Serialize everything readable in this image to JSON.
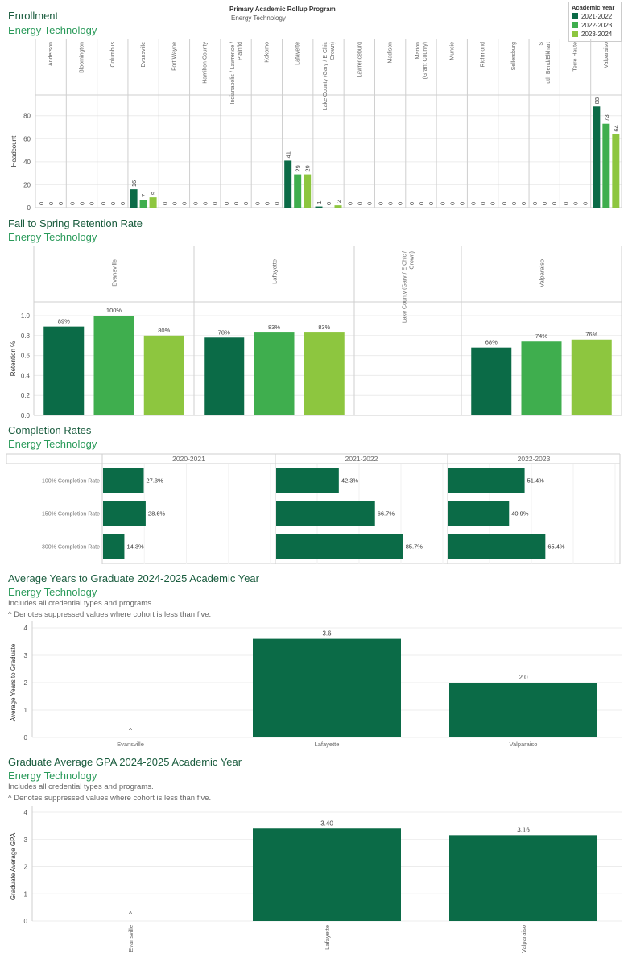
{
  "colors": {
    "y2122": "#0b6b47",
    "y2223": "#3fae4e",
    "y2324": "#8dc63f",
    "dark": "#0b6b47",
    "grid": "#ececec",
    "line": "#cfcfcf"
  },
  "enrollment": {
    "title": "Enrollment",
    "subtitle": "Energy Technology",
    "filter_title": "Primary Academic Rollup Program",
    "filter_value": "Energy Technology",
    "legend_title": "Academic Year",
    "legend": [
      "2021-2022",
      "2022-2023",
      "2023-2024"
    ],
    "chart_data": {
      "type": "bar",
      "ylabel": "Headcount",
      "ylim": [
        0,
        98
      ],
      "yticks": [
        0,
        20,
        40,
        60,
        80
      ],
      "categories": [
        "Anderson",
        "Bloomington",
        "Columbus",
        "Evansville",
        "Fort Wayne",
        "Hamilton County",
        "Indianapolis / Lawrence / Plainfld",
        "Kokomo",
        "Lafayette",
        "Lake County (Gary / E Chic / Crown)",
        "Lawrenceburg",
        "Madison",
        "Marion (Grant County)",
        "Muncie",
        "Richmond",
        "Sellersburg",
        "South Bend/Elkhart",
        "Terre Haute",
        "Valparaiso"
      ],
      "series": [
        {
          "name": "2021-2022",
          "values": [
            0,
            0,
            0,
            16,
            0,
            0,
            0,
            0,
            41,
            1,
            0,
            0,
            0,
            0,
            0,
            0,
            0,
            0,
            88
          ]
        },
        {
          "name": "2022-2023",
          "values": [
            0,
            0,
            0,
            7,
            0,
            0,
            0,
            0,
            29,
            0,
            0,
            0,
            0,
            0,
            0,
            0,
            0,
            0,
            73
          ]
        },
        {
          "name": "2023-2024",
          "values": [
            0,
            0,
            0,
            9,
            0,
            0,
            0,
            0,
            29,
            2,
            0,
            0,
            0,
            0,
            0,
            0,
            0,
            0,
            64
          ]
        }
      ]
    }
  },
  "retention": {
    "title": "Fall to Spring Retention Rate",
    "subtitle": "Energy Technology",
    "chart_data": {
      "type": "bar",
      "ylabel": "Retention %",
      "ylim": [
        0,
        1.0
      ],
      "yticks": [
        "0.0",
        "0.2",
        "0.4",
        "0.6",
        "0.8",
        "1.0"
      ],
      "categories": [
        "Evansville",
        "Lafayette",
        "Lake County (Gary / E Chic / Crown)",
        "Valparaiso"
      ],
      "series": [
        {
          "name": "2021-2022",
          "values": [
            0.89,
            0.78,
            null,
            0.68
          ],
          "labels": [
            "89%",
            "78%",
            "",
            "68%"
          ]
        },
        {
          "name": "2022-2023",
          "values": [
            1.0,
            0.83,
            null,
            0.74
          ],
          "labels": [
            "100%",
            "83%",
            "",
            "74%"
          ]
        },
        {
          "name": "2023-2024",
          "values": [
            0.8,
            0.83,
            null,
            0.76
          ],
          "labels": [
            "80%",
            "83%",
            "",
            "76%"
          ]
        }
      ]
    }
  },
  "completion": {
    "title": "Completion Rates",
    "subtitle": "Energy Technology",
    "chart_data": {
      "type": "bar",
      "orientation": "horizontal",
      "xlim": [
        0,
        100
      ],
      "columns": [
        "2020-2021",
        "2021-2022",
        "2022-2023"
      ],
      "rows": [
        "100% Completion Rate",
        "150% Completion Rate",
        "300% Completion Rate"
      ],
      "values": [
        [
          27.3,
          42.3,
          51.4
        ],
        [
          28.6,
          66.7,
          40.9
        ],
        [
          14.3,
          85.7,
          65.4
        ]
      ],
      "labels": [
        [
          "27.3%",
          "42.3%",
          "51.4%"
        ],
        [
          "28.6%",
          "66.7%",
          "40.9%"
        ],
        [
          "14.3%",
          "85.7%",
          "65.4%"
        ]
      ]
    }
  },
  "years_grad": {
    "title": "Average Years to Graduate 2024-2025 Academic Year",
    "subtitle": "Energy Technology",
    "note1": "Includes all credential types and programs.",
    "note2": "^ Denotes suppressed values where cohort is less than five.",
    "chart_data": {
      "type": "bar",
      "ylabel": "Average Years to Graduate",
      "ylim": [
        0,
        4
      ],
      "yticks": [
        "0",
        "1",
        "2",
        "3",
        "4"
      ],
      "categories": [
        "Evansville",
        "Lafayette",
        "Valparaiso"
      ],
      "values": [
        null,
        3.6,
        2.0
      ],
      "labels": [
        "^",
        "3.6",
        "2.0"
      ]
    }
  },
  "gpa": {
    "title": "Graduate Average GPA 2024-2025 Academic Year",
    "subtitle": "Energy Technology",
    "note1": "Includes all credential types and programs.",
    "note2": "^ Denotes suppressed values where cohort is less than five.",
    "chart_data": {
      "type": "bar",
      "ylabel": "Graduate Average GPA",
      "ylim": [
        0,
        4
      ],
      "yticks": [
        "0",
        "1",
        "2",
        "3",
        "4"
      ],
      "categories": [
        "Evansville",
        "Lafayette",
        "Valparaiso"
      ],
      "values": [
        null,
        3.4,
        3.16
      ],
      "labels": [
        "^",
        "3.40",
        "3.16"
      ]
    }
  }
}
